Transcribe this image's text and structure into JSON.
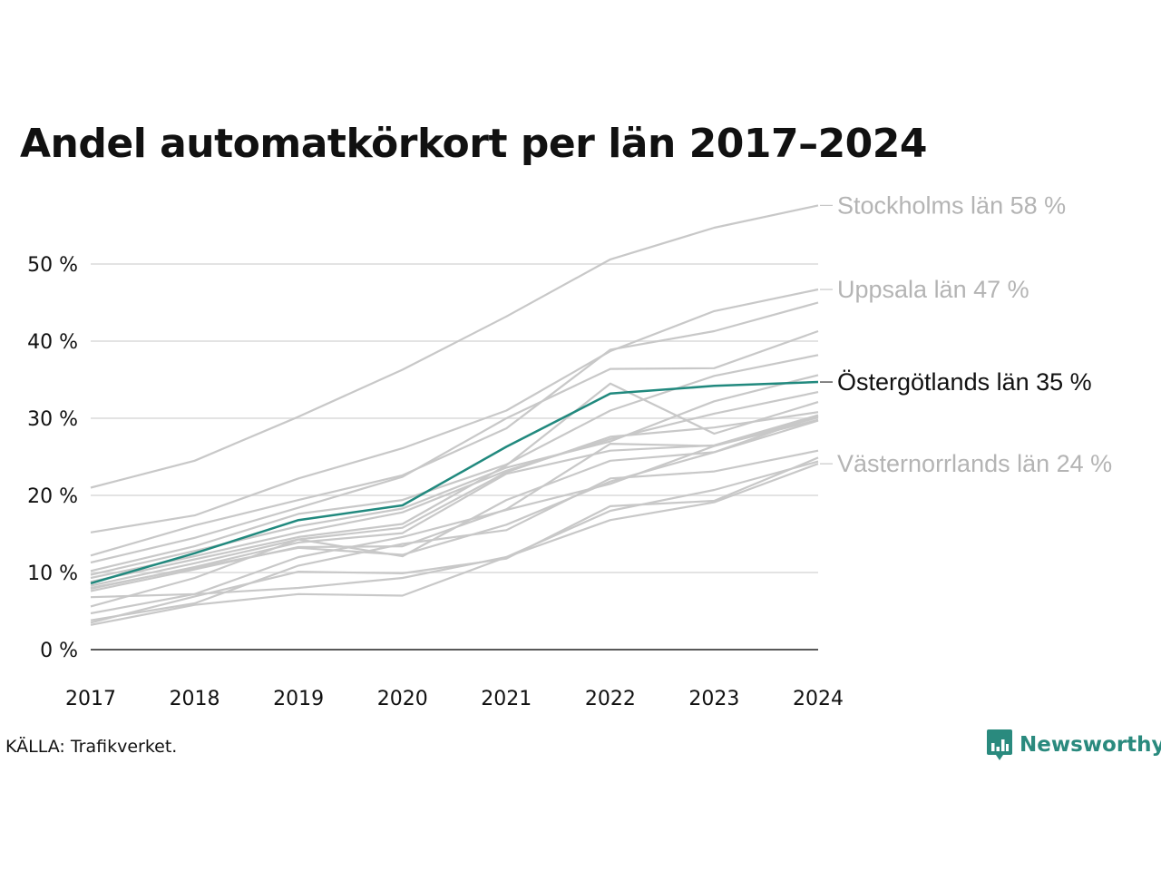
{
  "title": "Andel automatkörkort per län 2017–2024",
  "source": "KÄLLA: Trafikverket.",
  "brand": {
    "name": "Newsworthy",
    "icon": "bar-chart-speech-bubble-icon",
    "color": "#2a8a7e"
  },
  "chart_data": {
    "type": "line",
    "title": "Andel automatkörkort per län 2017–2024",
    "xlabel": "",
    "ylabel": "",
    "x": [
      2017,
      2018,
      2019,
      2020,
      2021,
      2022,
      2023,
      2024
    ],
    "x_tick_labels": [
      "2017",
      "2018",
      "2019",
      "2020",
      "2021",
      "2022",
      "2023",
      "2024"
    ],
    "y_tick_labels": [
      "0 %",
      "10 %",
      "20 %",
      "30 %",
      "40 %",
      "50 %"
    ],
    "ylim": [
      0,
      58
    ],
    "grid": true,
    "highlight_color": "#21897e",
    "background_color": "#c8c8c8",
    "series": [
      {
        "name": "Stockholms län",
        "label": "Stockholms län 58 %",
        "highlight": false,
        "values": [
          21.0,
          24.5,
          30.2,
          36.3,
          43.2,
          50.6,
          54.7,
          57.6
        ]
      },
      {
        "name": "Uppsala län",
        "label": "Uppsala län 47 %",
        "highlight": false,
        "values": [
          15.2,
          17.4,
          22.2,
          26.1,
          31.0,
          38.7,
          43.9,
          46.7
        ]
      },
      {
        "name": "Östergötlands län",
        "label": "Östergötlands län 35 %",
        "highlight": true,
        "values": [
          8.6,
          12.5,
          16.8,
          18.7,
          26.3,
          33.2,
          34.2,
          34.7
        ]
      },
      {
        "name": "Västernorrlands län",
        "label": "Västernorrlands län 24 %",
        "highlight": false,
        "values": [
          3.2,
          5.8,
          7.2,
          7.0,
          12.0,
          16.8,
          19.1,
          24.1
        ]
      },
      {
        "name": "",
        "highlight": false,
        "values": [
          12.2,
          16.1,
          19.4,
          22.6,
          28.7,
          38.9,
          41.3,
          45.0
        ]
      },
      {
        "name": "",
        "highlight": false,
        "values": [
          11.3,
          14.5,
          18.4,
          22.4,
          30.0,
          36.4,
          36.5,
          41.3
        ]
      },
      {
        "name": "",
        "highlight": false,
        "values": [
          10.2,
          13.4,
          17.6,
          19.4,
          24.0,
          31.0,
          35.5,
          38.2
        ]
      },
      {
        "name": "",
        "highlight": false,
        "values": [
          9.7,
          12.8,
          16.0,
          18.3,
          23.6,
          27.0,
          32.2,
          35.6
        ]
      },
      {
        "name": "",
        "highlight": false,
        "values": [
          9.3,
          12.1,
          15.2,
          17.8,
          23.2,
          27.3,
          30.6,
          33.4
        ]
      },
      {
        "name": "",
        "highlight": false,
        "values": [
          8.8,
          11.7,
          14.6,
          16.3,
          23.9,
          34.5,
          28.0,
          32.1
        ]
      },
      {
        "name": "",
        "highlight": false,
        "values": [
          8.3,
          11.2,
          14.3,
          15.8,
          23.0,
          27.6,
          28.8,
          30.8
        ]
      },
      {
        "name": "",
        "highlight": false,
        "values": [
          7.9,
          10.7,
          13.9,
          15.1,
          22.8,
          25.8,
          26.5,
          30.4
        ]
      },
      {
        "name": "",
        "highlight": false,
        "values": [
          7.6,
          10.4,
          13.3,
          13.4,
          18.2,
          26.7,
          26.4,
          30.1
        ]
      },
      {
        "name": "",
        "highlight": false,
        "values": [
          5.6,
          9.3,
          14.3,
          12.1,
          19.4,
          24.5,
          25.6,
          29.7
        ]
      },
      {
        "name": "",
        "highlight": false,
        "values": [
          4.7,
          7.2,
          12.0,
          14.6,
          18.1,
          21.5,
          26.4,
          29.8
        ]
      },
      {
        "name": "",
        "highlight": false,
        "values": [
          3.8,
          6.0,
          10.9,
          13.7,
          15.5,
          22.2,
          23.1,
          25.8
        ]
      },
      {
        "name": "",
        "highlight": false,
        "values": [
          3.5,
          6.9,
          10.1,
          9.9,
          11.8,
          18.6,
          19.3,
          24.9
        ]
      },
      {
        "name": "",
        "highlight": false,
        "values": [
          6.8,
          7.2,
          8.0,
          9.3,
          12.0,
          18.0,
          20.7,
          24.4
        ]
      },
      {
        "name": "",
        "highlight": false,
        "values": [
          8.0,
          10.6,
          13.2,
          12.3,
          16.2,
          21.8,
          25.6,
          30.3
        ]
      }
    ]
  }
}
